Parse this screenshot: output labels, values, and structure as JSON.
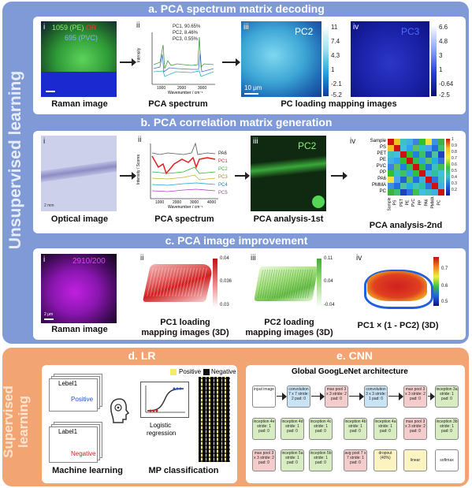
{
  "unsupervised_label": "Unsupervised learning",
  "supervised_label": "Supervised learning",
  "section_a": {
    "title": "a. PCA spectrum matrix decoding",
    "p1": {
      "roman": "i",
      "pe": "1059 (PE)",
      "or": "OR",
      "pvc": "695 (PVC)",
      "caption": "Raman image"
    },
    "p2": {
      "roman": "ii",
      "legend": [
        "PC1, 90.65%",
        "PC2, 8.46%",
        "PC3, 0.55%"
      ],
      "ylabel": "Intensity",
      "xlabel": "Wavenumber / cm⁻¹",
      "xticks": [
        "1000",
        "2000",
        "3000"
      ],
      "caption": "PCA spectrum"
    },
    "p3": {
      "roman": "iii",
      "label": "PC2",
      "scale": "10 μm",
      "cb_ticks": [
        "11",
        "7.4",
        "4.3",
        "1",
        "-2.1",
        "-5.2"
      ]
    },
    "p4": {
      "roman": "iv",
      "label": "PC3",
      "cb_ticks": [
        "6.6",
        "4.8",
        "3",
        "1",
        "-0.64",
        "-2.5"
      ]
    },
    "caption_34": "PC loading mapping images"
  },
  "section_b": {
    "title": "b. PCA correlation matrix generation",
    "p1": {
      "roman": "i",
      "scale": "2 mm",
      "caption": "Optical image"
    },
    "p2": {
      "roman": "ii",
      "ylabel": "Intensity / Scores",
      "xlabel": "Wavenumber / cm⁻¹",
      "xticks": [
        "1000",
        "2000",
        "3000",
        "4000"
      ],
      "legend": [
        "PA6",
        "PC1",
        "PC2",
        "PC3",
        "PC4",
        "PC5"
      ],
      "caption": "PCA spectrum"
    },
    "p3": {
      "roman": "iii",
      "label": "PC2",
      "caption": "PCA analysis-1st"
    },
    "p4": {
      "roman": "iv",
      "rows": [
        "Sample",
        "PS",
        "PET",
        "PE",
        "PVC",
        "PP",
        "PA6",
        "PMMA",
        "PC"
      ],
      "cb_ticks": [
        "1",
        "0.9",
        "0.8",
        "0.7",
        "0.6",
        "0.5",
        "0.4",
        "0.3",
        "0.2"
      ],
      "caption": "PCA analysis-2nd"
    }
  },
  "section_c": {
    "title": "c. PCA image improvement",
    "p1": {
      "roman": "i",
      "label": "2910/200",
      "scale": "2 μm",
      "caption": "Raman image"
    },
    "p2": {
      "roman": "ii",
      "cb_ticks": [
        "0.04",
        "0.036",
        "0.03"
      ],
      "caption1": "PC1 loading",
      "caption2": "mapping images (3D)"
    },
    "p3": {
      "roman": "iii",
      "cb_ticks": [
        "0.11",
        "0.04",
        "-0.04"
      ],
      "caption1": "PC2 loading",
      "caption2": "mapping images (3D)"
    },
    "p4": {
      "roman": "iv",
      "cb_ticks": [
        "0.7",
        "0.6",
        "0.5"
      ],
      "caption": "PC1 × (1 - PC2) (3D)"
    }
  },
  "section_d": {
    "title": "d. LR",
    "label1": "Lebel1",
    "label2": "Label1",
    "positive": "Positive",
    "negative": "Negative",
    "legend_pos": "Positive",
    "legend_neg": "Negative",
    "lr_label1": "Logistic",
    "lr_label2": "regression",
    "caption_ml": "Machine learning",
    "caption_mp": "MP classification"
  },
  "section_e": {
    "title": "e. CNN",
    "arch_title": "Global GoogLeNet architecture",
    "row1": [
      "input image",
      "convolution 7 x 7 stride: 2 pad: 0",
      "max pool 3 x 3 stride: 2 pad: 0",
      "convolution 3 x 3 stride: 1 pad: 0",
      "max pool 3 x 3 stride: 2 pad: 0",
      "inception 3a stride: 1 pad: 0"
    ],
    "row2": [
      "inception 4e stride: 1 pad: 0",
      "inception 4d stride: 1 pad: 0",
      "inception 4c stride: 1 pad: 0",
      "inception 4b stride: 1 pad: 0",
      "inception 4a stride: 1 pad: 0",
      "max pool 3 x 3 stride: 2 pad: 0",
      "inception 3b stride: 1 pad: 0"
    ],
    "row3": [
      "max pool 3 x 3 stride: 2 pad: 0",
      "inception 5a stride: 1 pad: 0",
      "inception 5b stride: 1 pad: 0",
      "avg pool 7 x 7 stride: 1 pad: 0",
      "dropout (40%)",
      "linear",
      "softmax"
    ]
  }
}
